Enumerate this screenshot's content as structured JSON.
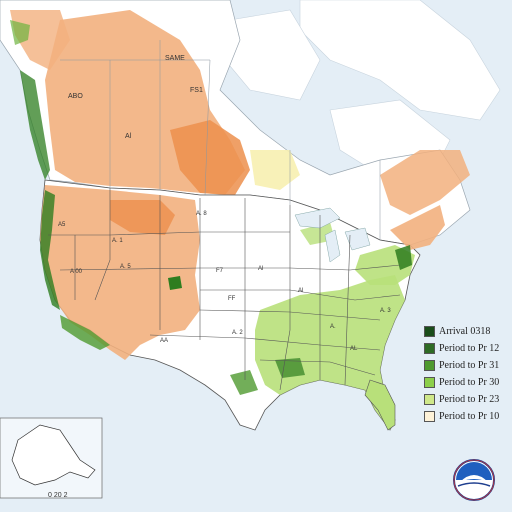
{
  "map": {
    "legend": [
      {
        "label": "Arrival 0318",
        "color": "#1a4d1a"
      },
      {
        "label": "Period to Pr 12",
        "color": "#2e6b24"
      },
      {
        "label": "Period to Pr 31",
        "color": "#4f9a2f"
      },
      {
        "label": "Period to Pr 30",
        "color": "#8ccf4a"
      },
      {
        "label": "Period to Pr 23",
        "color": "#cfe88a"
      },
      {
        "label": "Period to Pr 10",
        "color": "#fdf2d8"
      }
    ],
    "state_labels": {
      "ca": "A5",
      "nv": "A 00",
      "ut": "A. 1",
      "co": "A. 5",
      "ne": "F7",
      "ks": "FF",
      "ok": "A. 2",
      "tx": "AA",
      "sd": "Al",
      "mn": "Al",
      "wy": "A. 8",
      "al": "A.",
      "ga": "AL",
      "nc": "A. 3",
      "saskatchewan": "SAME",
      "alberta": "Al",
      "bc": "ABO",
      "mb": "FS1",
      "alaska_scale": "0 20 2"
    },
    "colors": {
      "ocean": "#e4eef6",
      "land": "#ffffff",
      "orange": "#f2b07e",
      "orange_dark": "#ec8f4c",
      "green_dark": "#2e7d1f",
      "green_light": "#b8e07a",
      "yellow": "#f7f0b0"
    },
    "logo_name": "noaa-logo"
  }
}
